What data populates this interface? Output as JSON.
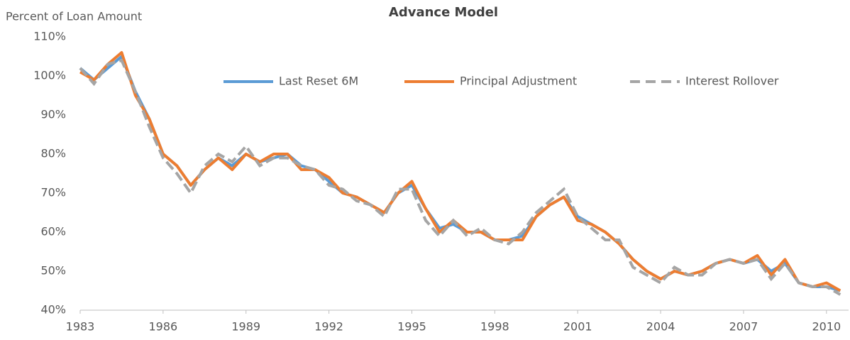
{
  "chart_data": {
    "type": "line",
    "title": "Advance Model",
    "y_label": "Percent of Loan Amount",
    "x": [
      1983,
      1983.5,
      1984,
      1984.5,
      1985,
      1985.5,
      1986,
      1986.5,
      1987,
      1987.5,
      1988,
      1988.5,
      1989,
      1989.5,
      1990,
      1990.5,
      1991,
      1991.5,
      1992,
      1992.5,
      1993,
      1993.5,
      1994,
      1994.5,
      1995,
      1995.5,
      1996,
      1996.5,
      1997,
      1997.5,
      1998,
      1998.5,
      1999,
      1999.5,
      2000,
      2000.5,
      2001,
      2001.5,
      2002,
      2002.5,
      2003,
      2003.5,
      2004,
      2004.5,
      2005,
      2005.5,
      2006,
      2006.5,
      2007,
      2007.5,
      2008,
      2008.5,
      2009,
      2009.5,
      2010,
      2010.5
    ],
    "series": [
      {
        "name": "Last Reset 6M",
        "color": "#5b9bd5",
        "dashed": false,
        "values": [
          102,
          99,
          102,
          105,
          96,
          89,
          80,
          77,
          72,
          76,
          79,
          77,
          80,
          78,
          79,
          80,
          77,
          76,
          73,
          70,
          69,
          67,
          65,
          70,
          72,
          66,
          61,
          62,
          60,
          60,
          58,
          58,
          59,
          64,
          67,
          69,
          64,
          62,
          60,
          57,
          53,
          50,
          48,
          50,
          49,
          50,
          52,
          53,
          52,
          53,
          50,
          52,
          47,
          46,
          46,
          45
        ]
      },
      {
        "name": "Principal Adjustment",
        "color": "#ed7d31",
        "dashed": false,
        "values": [
          101,
          99,
          103,
          106,
          95,
          89,
          80,
          77,
          72,
          76,
          79,
          76,
          80,
          78,
          80,
          80,
          76,
          76,
          74,
          70,
          69,
          67,
          65,
          70,
          73,
          66,
          60,
          63,
          60,
          60,
          58,
          58,
          58,
          64,
          67,
          69,
          63,
          62,
          60,
          57,
          53,
          50,
          48,
          50,
          49,
          50,
          52,
          53,
          52,
          54,
          49,
          53,
          47,
          46,
          47,
          45
        ]
      },
      {
        "name": "Interest Rollover",
        "color": "#a5a5a5",
        "dashed": true,
        "values": [
          102,
          98,
          103,
          104,
          96,
          87,
          79,
          75,
          70,
          77,
          80,
          78,
          82,
          77,
          79,
          79,
          77,
          76,
          72,
          71,
          68,
          67,
          64,
          71,
          71,
          63,
          59,
          63,
          59,
          61,
          58,
          57,
          60,
          65,
          68,
          71,
          64,
          61,
          58,
          58,
          51,
          49,
          47,
          51,
          49,
          49,
          52,
          53,
          52,
          53,
          48,
          52,
          47,
          46,
          46,
          44
        ]
      }
    ],
    "xlim": [
      1983,
      2010.8
    ],
    "xticks": [
      1983,
      1986,
      1989,
      1992,
      1995,
      1998,
      2001,
      2004,
      2007,
      2010
    ],
    "ylim": [
      40,
      110
    ],
    "yticks": [
      {
        "value": 40,
        "label": "40%"
      },
      {
        "value": 50,
        "label": "50%"
      },
      {
        "value": 60,
        "label": "60%"
      },
      {
        "value": 70,
        "label": "70%"
      },
      {
        "value": 80,
        "label": "80%"
      },
      {
        "value": 90,
        "label": "90%"
      },
      {
        "value": 100,
        "label": "100%"
      },
      {
        "value": 110,
        "label": "110%"
      }
    ],
    "grid": false,
    "legend": "top"
  }
}
